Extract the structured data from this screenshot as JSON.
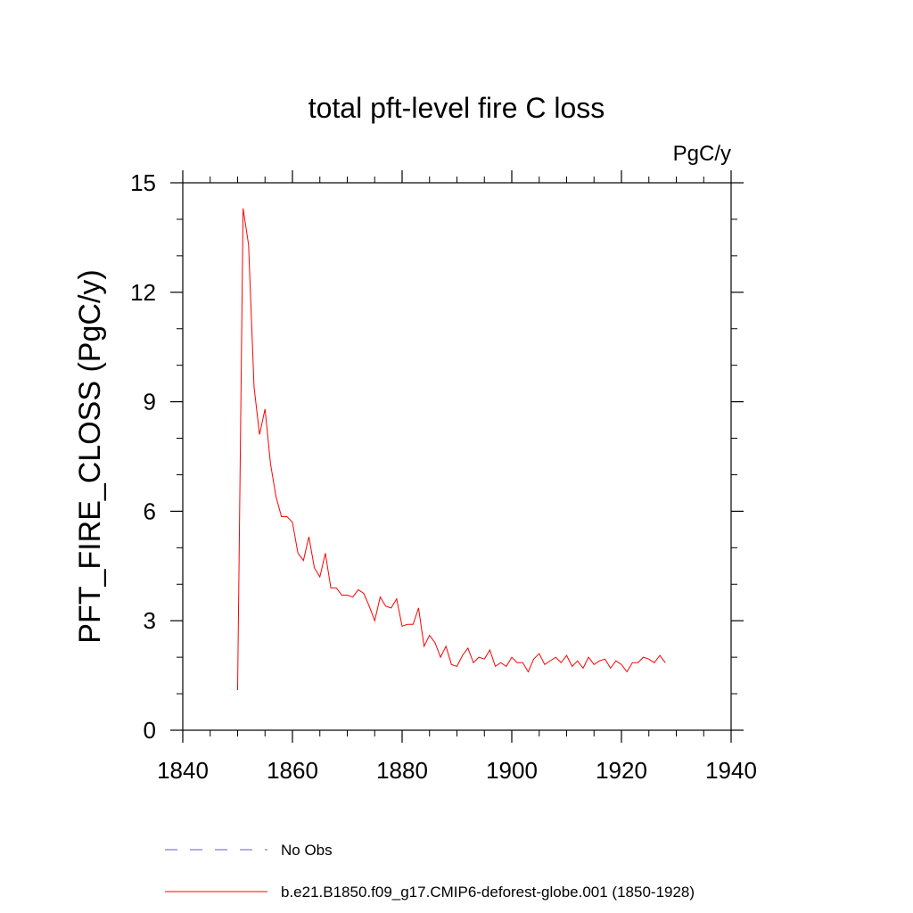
{
  "chart_data": {
    "type": "line",
    "title": "total pft-level fire C loss",
    "units_label": "PgC/y",
    "xlabel": "",
    "ylabel": "PFT_FIRE_CLOSS  (PgC/y)",
    "xlim": [
      1840,
      1940
    ],
    "ylim": [
      0,
      15
    ],
    "x_ticks": [
      1840,
      1860,
      1880,
      1900,
      1920,
      1940
    ],
    "x_tick_labels": [
      "1840",
      "1860",
      "1880",
      "1900",
      "1920",
      "1940"
    ],
    "y_ticks": [
      0,
      3,
      6,
      9,
      12,
      15
    ],
    "y_tick_labels": [
      "0",
      "3",
      "6",
      "9",
      "12",
      "15"
    ],
    "grid": false,
    "legend_position": "bottom",
    "series": [
      {
        "name": "No Obs",
        "color": "#6a5acd",
        "style": "dashed",
        "x": [],
        "values": []
      },
      {
        "name": "b.e21.B1850.f09_g17.CMIP6-deforest-globe.001 (1850-1928)",
        "color": "#ff0000",
        "style": "solid",
        "x": [
          1850,
          1851,
          1852,
          1853,
          1854,
          1855,
          1856,
          1857,
          1858,
          1859,
          1860,
          1861,
          1862,
          1863,
          1864,
          1865,
          1866,
          1867,
          1868,
          1869,
          1870,
          1871,
          1872,
          1873,
          1874,
          1875,
          1876,
          1877,
          1878,
          1879,
          1880,
          1881,
          1882,
          1883,
          1884,
          1885,
          1886,
          1887,
          1888,
          1889,
          1890,
          1891,
          1892,
          1893,
          1894,
          1895,
          1896,
          1897,
          1898,
          1899,
          1900,
          1901,
          1902,
          1903,
          1904,
          1905,
          1906,
          1907,
          1908,
          1909,
          1910,
          1911,
          1912,
          1913,
          1914,
          1915,
          1916,
          1917,
          1918,
          1919,
          1920,
          1921,
          1922,
          1923,
          1924,
          1925,
          1926,
          1927,
          1928
        ],
        "values": [
          1.1,
          14.3,
          13.3,
          9.4,
          8.1,
          8.8,
          7.3,
          6.4,
          5.85,
          5.85,
          5.7,
          4.85,
          4.65,
          5.3,
          4.45,
          4.2,
          4.85,
          3.9,
          3.9,
          3.7,
          3.7,
          3.65,
          3.85,
          3.75,
          3.4,
          3.0,
          3.65,
          3.4,
          3.35,
          3.6,
          2.85,
          2.9,
          2.9,
          3.35,
          2.3,
          2.6,
          2.4,
          2.0,
          2.3,
          1.8,
          1.75,
          2.05,
          2.25,
          1.85,
          2.0,
          1.95,
          2.2,
          1.75,
          1.85,
          1.75,
          2.0,
          1.85,
          1.85,
          1.6,
          1.95,
          2.1,
          1.8,
          1.9,
          2.0,
          1.85,
          2.05,
          1.75,
          1.9,
          1.7,
          2.0,
          1.8,
          1.9,
          1.95,
          1.7,
          1.9,
          1.8,
          1.6,
          1.85,
          1.85,
          2.0,
          1.95,
          1.85,
          2.05,
          1.85
        ]
      }
    ]
  }
}
